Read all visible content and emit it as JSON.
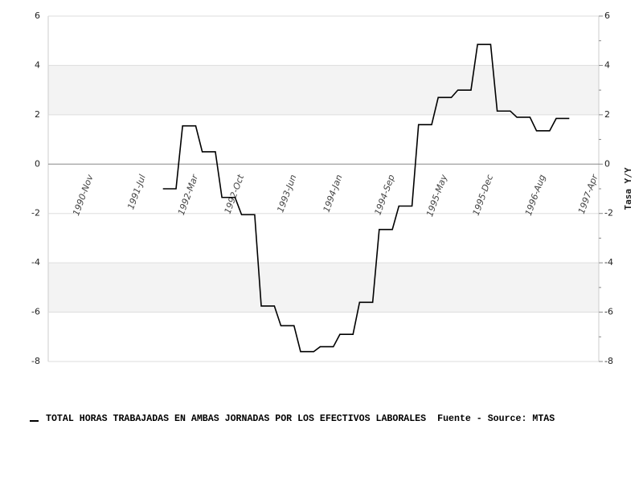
{
  "chart_data": {
    "type": "line",
    "categories": [
      null,
      null,
      null,
      null,
      null,
      null,
      "1990-Nov",
      null,
      null,
      null,
      null,
      null,
      null,
      null,
      "1991-Jul",
      null,
      null,
      null,
      null,
      null,
      null,
      null,
      "1992-Mar",
      null,
      null,
      null,
      null,
      null,
      null,
      "1992-Oct",
      null,
      null,
      null,
      null,
      null,
      null,
      null,
      "1993-Jun",
      null,
      null,
      null,
      null,
      null,
      null,
      "1994-Jan",
      null,
      null,
      null,
      null,
      null,
      null,
      null,
      "1994-Sep",
      null,
      null,
      null,
      null,
      null,
      null,
      null,
      "1995-May",
      null,
      null,
      null,
      null,
      null,
      null,
      "1995-Dec",
      null,
      null,
      null,
      null,
      null,
      null,
      null,
      "1996-Aug",
      null,
      null,
      null,
      null,
      null,
      null,
      null,
      "1997-Apr"
    ],
    "series": [
      {
        "name": "TOTAL HORAS TRABAJADAS EN AMBAS JORNADAS POR LOS EFECTIVOS LABORALES",
        "color": "#000000",
        "values": [
          null,
          null,
          null,
          null,
          null,
          null,
          null,
          null,
          null,
          null,
          null,
          null,
          null,
          null,
          null,
          null,
          null,
          -1,
          -1,
          -1,
          1.55,
          1.55,
          1.55,
          0.5,
          0.5,
          0.5,
          -1.35,
          -1.35,
          -1.35,
          -2.05,
          -2.05,
          -2.05,
          -5.75,
          -5.75,
          -5.75,
          -6.55,
          -6.55,
          -6.55,
          -7.6,
          -7.6,
          -7.6,
          -7.4,
          -7.4,
          -7.4,
          -6.9,
          -6.9,
          -6.9,
          -5.6,
          -5.6,
          -5.6,
          -2.65,
          -2.65,
          -2.65,
          -1.7,
          -1.7,
          -1.7,
          1.6,
          1.6,
          1.6,
          2.7,
          2.7,
          2.7,
          3,
          3,
          3,
          4.85,
          4.85,
          4.85,
          2.15,
          2.15,
          2.15,
          1.9,
          1.9,
          1.9,
          1.35,
          1.35,
          1.35,
          1.85,
          1.85,
          1.85,
          null,
          null,
          null,
          null
        ]
      }
    ],
    "source": "Fuente - Source: MTAS",
    "ylim": [
      -8,
      6
    ],
    "yticks": [
      -8,
      -6,
      -4,
      -2,
      0,
      2,
      4,
      6
    ],
    "y2lim": [
      -8,
      6
    ],
    "y2ticks": [
      -8,
      -6,
      -4,
      -2,
      0,
      2,
      4,
      6
    ],
    "y2minor": [
      -7,
      -5,
      -3,
      -1,
      1,
      3,
      5
    ],
    "y2label": "Tasa Y/Y",
    "bands": true
  }
}
